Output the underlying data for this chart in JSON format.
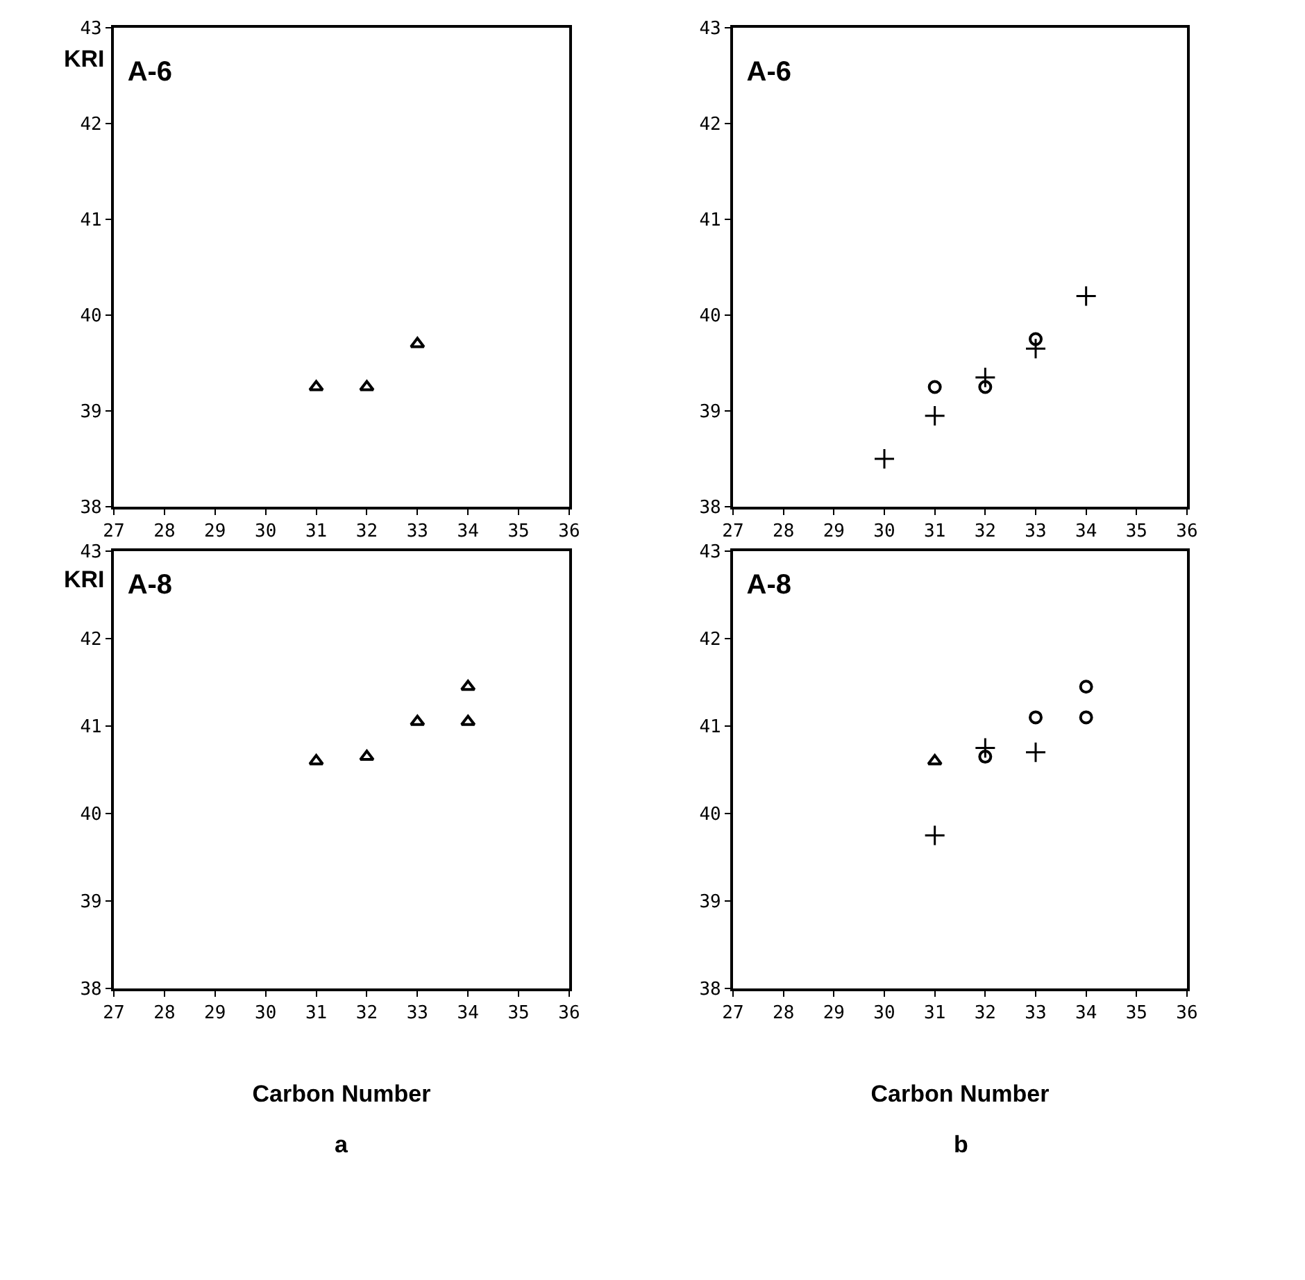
{
  "chart_data": [
    {
      "type": "scatter",
      "title": "A-6",
      "ylabel": "KRI",
      "xlim": [
        27,
        36
      ],
      "xticks": [
        27,
        28,
        29,
        30,
        31,
        32,
        33,
        34,
        35,
        36
      ],
      "ylim": [
        38,
        43
      ],
      "yticks": [
        38,
        39,
        40,
        41,
        42,
        43
      ],
      "series": [
        {
          "color": "#000000",
          "marker": "triangle",
          "x": [
            31,
            32,
            33
          ],
          "values": [
            39.25,
            39.25,
            39.7
          ]
        }
      ]
    },
    {
      "type": "scatter",
      "title": "A-6",
      "xlim": [
        27,
        36
      ],
      "xticks": [
        27,
        28,
        29,
        30,
        31,
        32,
        33,
        34,
        35,
        36
      ],
      "ylim": [
        38,
        43
      ],
      "yticks": [
        38,
        39,
        40,
        41,
        42,
        43
      ],
      "series": [
        {
          "color": "#000000",
          "marker": "circle",
          "x": [
            31,
            32,
            33
          ],
          "values": [
            39.25,
            39.25,
            39.75
          ]
        },
        {
          "color": "#000000",
          "marker": "cross",
          "x": [
            30,
            31,
            32,
            33,
            34
          ],
          "values": [
            38.5,
            38.95,
            39.35,
            39.65,
            40.2
          ]
        }
      ]
    },
    {
      "type": "scatter",
      "title": "A-8",
      "ylabel": "KRI",
      "xlabel": "Carbon Number",
      "annotations": [
        "a"
      ],
      "xlim": [
        27,
        36
      ],
      "xticks": [
        27,
        28,
        29,
        30,
        31,
        32,
        33,
        34,
        35,
        36
      ],
      "ylim": [
        38,
        43
      ],
      "yticks": [
        38,
        39,
        40,
        41,
        42,
        43
      ],
      "series": [
        {
          "color": "#000000",
          "marker": "triangle",
          "x": [
            31,
            32,
            33,
            34,
            34
          ],
          "values": [
            40.6,
            40.65,
            41.05,
            41.05,
            41.45
          ]
        }
      ]
    },
    {
      "type": "scatter",
      "title": "A-8",
      "xlabel": "Carbon Number",
      "annotations": [
        "b"
      ],
      "xlim": [
        27,
        36
      ],
      "xticks": [
        27,
        28,
        29,
        30,
        31,
        32,
        33,
        34,
        35,
        36
      ],
      "ylim": [
        38,
        43
      ],
      "yticks": [
        38,
        39,
        40,
        41,
        42,
        43
      ],
      "series": [
        {
          "color": "#000000",
          "marker": "triangle",
          "x": [
            31
          ],
          "values": [
            40.6
          ]
        },
        {
          "color": "#000000",
          "marker": "circle",
          "x": [
            32,
            33,
            34,
            34
          ],
          "values": [
            40.65,
            41.1,
            41.1,
            41.45
          ]
        },
        {
          "color": "#000000",
          "marker": "cross",
          "x": [
            31,
            32,
            33
          ],
          "values": [
            39.75,
            40.75,
            40.7
          ]
        }
      ]
    }
  ]
}
